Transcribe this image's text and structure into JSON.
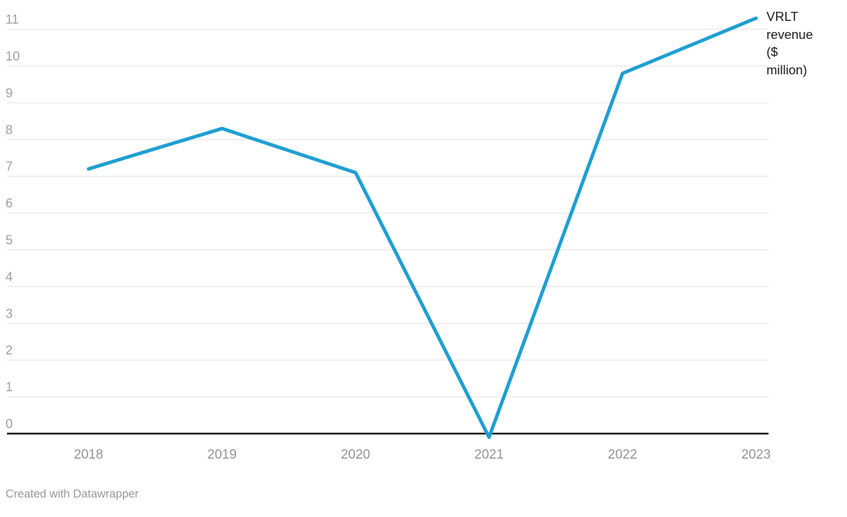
{
  "chart": {
    "series_label": "VRLT revenue ($ million)",
    "footer_text": "Created with Datawrapper",
    "colors": {
      "line": "#1f9ed2",
      "grid": "#e8e8e8",
      "axis": "#111111",
      "y_tick_label": "#9c9c9c",
      "x_tick_label": "#8f8f8f",
      "footer_text": "#969696",
      "series_label_text": "#141414"
    }
  },
  "chart_data": {
    "type": "line",
    "title": "",
    "xlabel": "",
    "ylabel": "",
    "x": [
      2018,
      2019,
      2020,
      2021,
      2022,
      2023
    ],
    "series": [
      {
        "name": "VRLT revenue ($ million)",
        "values": [
          7.2,
          8.3,
          7.1,
          -0.1,
          9.8,
          11.3
        ]
      }
    ],
    "ylim": [
      0,
      11
    ],
    "yticks": [
      0,
      1,
      2,
      3,
      4,
      5,
      6,
      7,
      8,
      9,
      10,
      11
    ],
    "grid": "horizontal-only",
    "legend_position": "right-of-line-end",
    "annotations": []
  }
}
